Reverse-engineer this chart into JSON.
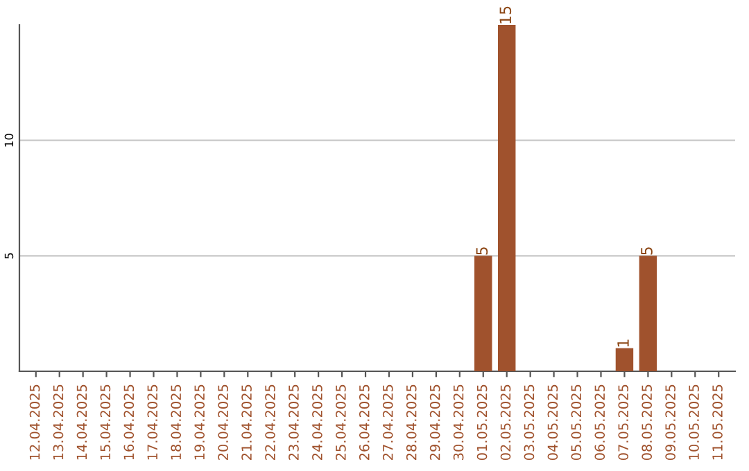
{
  "chart_data": {
    "type": "bar",
    "categories": [
      "12.04.2025",
      "13.04.2025",
      "14.04.2025",
      "15.04.2025",
      "16.04.2025",
      "17.04.2025",
      "18.04.2025",
      "19.04.2025",
      "20.04.2025",
      "21.04.2025",
      "22.04.2025",
      "23.04.2025",
      "24.04.2025",
      "25.04.2025",
      "26.04.2025",
      "27.04.2025",
      "28.04.2025",
      "29.04.2025",
      "30.04.2025",
      "01.05.2025",
      "02.05.2025",
      "03.05.2025",
      "04.05.2025",
      "05.05.2025",
      "06.05.2025",
      "07.05.2025",
      "08.05.2025",
      "09.05.2025",
      "10.05.2025",
      "11.05.2025"
    ],
    "values": [
      0,
      0,
      0,
      0,
      0,
      0,
      0,
      0,
      0,
      0,
      0,
      0,
      0,
      0,
      0,
      0,
      0,
      0,
      0,
      5,
      15,
      0,
      0,
      0,
      0,
      1,
      5,
      0,
      0,
      0
    ],
    "value_labels": [
      null,
      null,
      null,
      null,
      null,
      null,
      null,
      null,
      null,
      null,
      null,
      null,
      null,
      null,
      null,
      null,
      null,
      null,
      null,
      "5",
      "15",
      null,
      null,
      null,
      null,
      "1",
      "5",
      null,
      null,
      null
    ],
    "color": "#a0522d",
    "ylim": [
      0,
      15
    ],
    "yticks": [
      5,
      10
    ],
    "grid": "y"
  }
}
